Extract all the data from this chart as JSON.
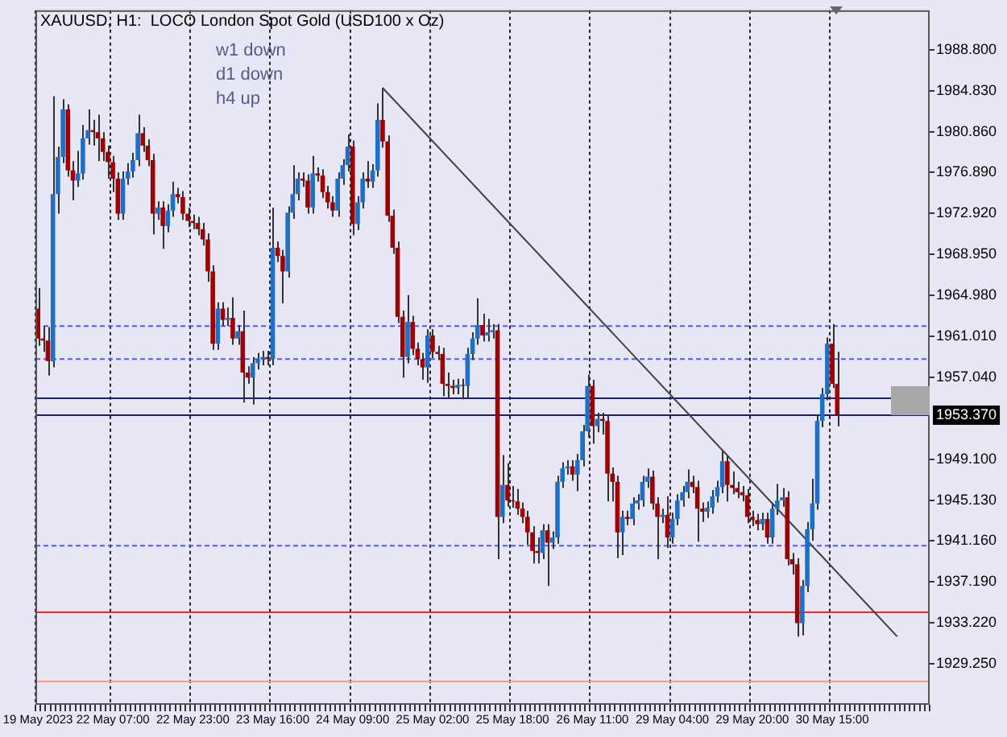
{
  "chart_data": {
    "type": "candlestick",
    "title": "XAUUSD, H1:  LOCO London Spot Gold (USD100 x Oz)",
    "annotations": [
      "w1 down",
      "d1 down",
      "h4 up"
    ],
    "categories": [
      "19 May 2023",
      null,
      null,
      null,
      null,
      null,
      null,
      null,
      null,
      null,
      null,
      null,
      null,
      null,
      null,
      "22 May 07:00",
      null,
      null,
      null,
      null,
      null,
      null,
      null,
      null,
      null,
      null,
      null,
      null,
      null,
      null,
      null,
      "22 May 23:00",
      null,
      null,
      null,
      null,
      null,
      null,
      null,
      null,
      null,
      null,
      null,
      null,
      null,
      null,
      null,
      "23 May 16:00",
      null,
      null,
      null,
      null,
      null,
      null,
      null,
      null,
      null,
      null,
      null,
      null,
      null,
      null,
      null,
      "24 May 09:00",
      null,
      null,
      null,
      null,
      null,
      null,
      null,
      null,
      null,
      null,
      null,
      null,
      null,
      null,
      null,
      "25 May 02:00",
      null,
      null,
      null,
      null,
      null,
      null,
      null,
      null,
      null,
      null,
      null,
      null,
      null,
      null,
      null,
      "25 May 18:00",
      null,
      null,
      null,
      null,
      null,
      null,
      null,
      null,
      null,
      null,
      null,
      null,
      null,
      null,
      null,
      "26 May 11:00",
      null,
      null,
      null,
      null,
      null,
      null,
      null,
      null,
      null,
      null,
      null,
      null,
      null,
      null,
      null,
      "29 May 04:00",
      null,
      null,
      null,
      null,
      null,
      null,
      null,
      null,
      null,
      null,
      null,
      null,
      null,
      null,
      null,
      "29 May 20:00",
      null,
      null,
      null,
      null,
      null,
      null,
      null,
      null,
      null,
      null,
      null,
      null,
      null,
      null,
      null,
      "30 May 15:00",
      null,
      null,
      null,
      null,
      null,
      null,
      null,
      null,
      null,
      null,
      null,
      null,
      null,
      null,
      null,
      null,
      null,
      null,
      null
    ],
    "ohlc": [
      [
        1963.7,
        1965.7,
        1960.1,
        1960.8
      ],
      [
        1960.8,
        1962.0,
        1959.5,
        1960.6
      ],
      [
        1960.6,
        1961.9,
        1957.2,
        1958.6
      ],
      [
        1958.6,
        1984.3,
        1958.0,
        1974.8
      ],
      [
        1974.8,
        1979.4,
        1972.9,
        1978.4
      ],
      [
        1978.4,
        1984.0,
        1977.8,
        1983.0
      ],
      [
        1983.0,
        1983.5,
        1976.5,
        1977.1
      ],
      [
        1977.1,
        1978.0,
        1974.2,
        1976.1
      ],
      [
        1976.1,
        1979.0,
        1975.5,
        1976.8
      ],
      [
        1976.8,
        1981.5,
        1976.2,
        1980.2
      ],
      [
        1980.2,
        1983.0,
        1979.6,
        1981.0
      ],
      [
        1981.0,
        1982.0,
        1979.5,
        1980.8
      ],
      [
        1980.8,
        1982.5,
        1978.0,
        1980.2
      ],
      [
        1980.2,
        1980.8,
        1978.0,
        1978.9
      ],
      [
        1978.9,
        1979.5,
        1976.3,
        1977.9
      ],
      [
        1977.9,
        1978.5,
        1975.0,
        1976.3
      ],
      [
        1976.3,
        1976.9,
        1972.3,
        1972.9
      ],
      [
        1972.9,
        1977.0,
        1972.3,
        1976.3
      ],
      [
        1976.3,
        1977.8,
        1975.7,
        1977.0
      ],
      [
        1977.0,
        1978.8,
        1976.4,
        1978.1
      ],
      [
        1978.1,
        1982.5,
        1977.5,
        1980.7
      ],
      [
        1980.7,
        1981.3,
        1978.9,
        1979.5
      ],
      [
        1979.5,
        1980.1,
        1977.5,
        1978.1
      ],
      [
        1978.1,
        1978.7,
        1970.9,
        1972.9
      ],
      [
        1972.9,
        1974.1,
        1972.3,
        1973.5
      ],
      [
        1973.5,
        1974.1,
        1969.5,
        1971.7
      ],
      [
        1971.7,
        1973.8,
        1971.1,
        1973.2
      ],
      [
        1973.2,
        1976.0,
        1972.6,
        1974.8
      ],
      [
        1974.8,
        1975.4,
        1973.9,
        1974.5
      ],
      [
        1974.5,
        1975.1,
        1972.3,
        1972.9
      ],
      [
        1972.9,
        1973.5,
        1971.6,
        1972.2
      ],
      [
        1972.2,
        1972.8,
        1971.4,
        1972.0
      ],
      [
        1972.0,
        1972.6,
        1970.8,
        1971.4
      ],
      [
        1971.4,
        1972.0,
        1969.8,
        1970.4
      ],
      [
        1970.4,
        1971.0,
        1966.3,
        1967.3
      ],
      [
        1967.3,
        1967.9,
        1959.7,
        1960.3
      ],
      [
        1960.3,
        1964.3,
        1959.7,
        1963.7
      ],
      [
        1963.7,
        1964.3,
        1962.0,
        1962.6
      ],
      [
        1962.6,
        1963.8,
        1962.0,
        1962.8
      ],
      [
        1962.8,
        1964.8,
        1960.2,
        1960.8
      ],
      [
        1960.8,
        1962.1,
        1960.2,
        1961.5
      ],
      [
        1961.5,
        1963.5,
        1954.6,
        1957.5
      ],
      [
        1957.5,
        1958.1,
        1956.4,
        1957.0
      ],
      [
        1957.0,
        1959.0,
        1954.4,
        1958.4
      ],
      [
        1958.4,
        1959.4,
        1957.8,
        1958.8
      ],
      [
        1958.8,
        1959.6,
        1958.2,
        1959.0
      ],
      [
        1959.0,
        1959.6,
        1958.2,
        1958.8
      ],
      [
        1958.8,
        1973.5,
        1958.2,
        1969.6
      ],
      [
        1969.6,
        1970.2,
        1968.2,
        1968.8
      ],
      [
        1968.8,
        1969.4,
        1964.2,
        1967.3
      ],
      [
        1967.3,
        1973.6,
        1966.7,
        1973.0
      ],
      [
        1973.0,
        1977.6,
        1972.4,
        1974.8
      ],
      [
        1974.8,
        1976.9,
        1974.2,
        1976.3
      ],
      [
        1976.3,
        1976.9,
        1975.5,
        1976.1
      ],
      [
        1976.1,
        1976.7,
        1972.9,
        1973.5
      ],
      [
        1973.5,
        1978.5,
        1972.9,
        1976.8
      ],
      [
        1976.8,
        1977.4,
        1976.0,
        1976.6
      ],
      [
        1976.6,
        1977.2,
        1974.4,
        1975.0
      ],
      [
        1975.0,
        1975.6,
        1973.4,
        1974.0
      ],
      [
        1974.0,
        1974.6,
        1972.6,
        1973.2
      ],
      [
        1973.2,
        1976.9,
        1972.6,
        1976.3
      ],
      [
        1976.3,
        1978.2,
        1975.7,
        1977.6
      ],
      [
        1977.6,
        1980.6,
        1977.0,
        1979.4
      ],
      [
        1979.4,
        1980.0,
        1970.8,
        1971.9
      ],
      [
        1971.9,
        1974.6,
        1971.3,
        1974.0
      ],
      [
        1974.0,
        1976.9,
        1973.4,
        1976.3
      ],
      [
        1976.3,
        1978.0,
        1975.4,
        1976.0
      ],
      [
        1976.0,
        1977.7,
        1975.4,
        1977.1
      ],
      [
        1977.1,
        1983.6,
        1976.5,
        1982.0
      ],
      [
        1982.0,
        1985.1,
        1979.3,
        1979.9
      ],
      [
        1979.9,
        1980.5,
        1972.1,
        1972.7
      ],
      [
        1972.7,
        1973.3,
        1969.0,
        1969.6
      ],
      [
        1969.6,
        1970.2,
        1962.3,
        1962.9
      ],
      [
        1962.9,
        1963.5,
        1957.0,
        1959.0
      ],
      [
        1959.0,
        1965.0,
        1958.4,
        1962.4
      ],
      [
        1962.4,
        1963.0,
        1959.2,
        1959.8
      ],
      [
        1959.8,
        1960.4,
        1958.2,
        1958.8
      ],
      [
        1958.8,
        1959.4,
        1956.8,
        1958.0
      ],
      [
        1958.0,
        1961.7,
        1956.5,
        1961.1
      ],
      [
        1961.1,
        1961.7,
        1958.9,
        1959.5
      ],
      [
        1959.5,
        1960.1,
        1958.7,
        1959.3
      ],
      [
        1959.3,
        1959.9,
        1955.2,
        1956.4
      ],
      [
        1956.4,
        1957.5,
        1955.0,
        1956.2
      ],
      [
        1956.2,
        1956.8,
        1955.4,
        1956.0
      ],
      [
        1956.0,
        1956.9,
        1955.4,
        1956.3
      ],
      [
        1956.3,
        1956.9,
        1954.9,
        1956.2
      ],
      [
        1956.2,
        1959.9,
        1955.0,
        1959.3
      ],
      [
        1959.3,
        1961.4,
        1958.7,
        1960.8
      ],
      [
        1960.8,
        1964.7,
        1960.2,
        1962.1
      ],
      [
        1962.1,
        1963.2,
        1960.5,
        1961.1
      ],
      [
        1961.1,
        1962.7,
        1960.5,
        1961.4
      ],
      [
        1961.4,
        1962.2,
        1960.8,
        1961.6
      ],
      [
        1961.6,
        1962.2,
        1939.4,
        1943.5
      ],
      [
        1943.5,
        1949.5,
        1942.9,
        1946.6
      ],
      [
        1946.6,
        1948.7,
        1944.5,
        1945.1
      ],
      [
        1945.1,
        1946.5,
        1944.4,
        1945.0
      ],
      [
        1945.0,
        1946.2,
        1943.7,
        1944.3
      ],
      [
        1944.3,
        1944.9,
        1942.9,
        1943.5
      ],
      [
        1943.5,
        1944.1,
        1940.8,
        1942.0
      ],
      [
        1942.0,
        1942.6,
        1939.0,
        1940.2
      ],
      [
        1940.2,
        1941.5,
        1939.0,
        1940.0
      ],
      [
        1940.0,
        1942.8,
        1939.4,
        1942.2
      ],
      [
        1942.2,
        1942.8,
        1936.8,
        1941.0
      ],
      [
        1941.0,
        1942.1,
        1940.4,
        1941.5
      ],
      [
        1941.5,
        1947.5,
        1940.9,
        1946.9
      ],
      [
        1946.9,
        1948.8,
        1946.3,
        1948.2
      ],
      [
        1948.2,
        1949.0,
        1947.6,
        1948.4
      ],
      [
        1948.4,
        1949.0,
        1947.0,
        1947.6
      ],
      [
        1947.6,
        1949.6,
        1946.0,
        1949.0
      ],
      [
        1949.0,
        1952.4,
        1948.4,
        1951.8
      ],
      [
        1951.8,
        1957.3,
        1951.2,
        1956.2
      ],
      [
        1956.2,
        1956.8,
        1950.6,
        1952.3
      ],
      [
        1952.3,
        1953.6,
        1951.7,
        1953.0
      ],
      [
        1953.0,
        1953.6,
        1951.5,
        1952.8
      ],
      [
        1952.8,
        1953.4,
        1945.0,
        1947.7
      ],
      [
        1947.7,
        1948.3,
        1945.0,
        1946.9
      ],
      [
        1946.9,
        1947.5,
        1939.5,
        1942.0
      ],
      [
        1942.0,
        1944.1,
        1939.8,
        1943.5
      ],
      [
        1943.5,
        1944.1,
        1942.7,
        1943.3
      ],
      [
        1943.3,
        1945.4,
        1942.7,
        1944.8
      ],
      [
        1944.8,
        1945.7,
        1944.2,
        1945.1
      ],
      [
        1945.1,
        1947.5,
        1944.5,
        1946.9
      ],
      [
        1946.9,
        1948.2,
        1946.3,
        1947.4
      ],
      [
        1947.4,
        1948.0,
        1944.2,
        1944.8
      ],
      [
        1944.8,
        1945.4,
        1939.4,
        1943.5
      ],
      [
        1943.5,
        1944.3,
        1942.9,
        1943.7
      ],
      [
        1943.7,
        1945.5,
        1940.5,
        1941.5
      ],
      [
        1941.5,
        1943.9,
        1940.9,
        1943.3
      ],
      [
        1943.3,
        1945.7,
        1942.7,
        1945.1
      ],
      [
        1945.1,
        1946.5,
        1944.5,
        1945.9
      ],
      [
        1945.9,
        1948.1,
        1945.3,
        1946.9
      ],
      [
        1946.9,
        1947.5,
        1945.8,
        1946.4
      ],
      [
        1946.4,
        1947.0,
        1941.1,
        1944.3
      ],
      [
        1944.3,
        1944.9,
        1943.0,
        1944.0
      ],
      [
        1944.0,
        1945.0,
        1943.4,
        1944.4
      ],
      [
        1944.4,
        1946.1,
        1943.8,
        1945.5
      ],
      [
        1945.5,
        1947.0,
        1944.9,
        1946.4
      ],
      [
        1946.4,
        1949.9,
        1945.8,
        1948.9
      ],
      [
        1948.9,
        1949.5,
        1945.0,
        1946.6
      ],
      [
        1946.6,
        1947.9,
        1945.7,
        1946.3
      ],
      [
        1946.3,
        1946.9,
        1945.3,
        1945.9
      ],
      [
        1945.9,
        1946.5,
        1945.0,
        1945.6
      ],
      [
        1945.6,
        1946.2,
        1942.9,
        1943.5
      ],
      [
        1943.5,
        1944.1,
        1942.6,
        1943.2
      ],
      [
        1943.2,
        1943.8,
        1942.2,
        1942.8
      ],
      [
        1942.8,
        1943.9,
        1942.2,
        1943.3
      ],
      [
        1943.3,
        1943.9,
        1940.9,
        1941.5
      ],
      [
        1941.5,
        1944.9,
        1940.9,
        1944.3
      ],
      [
        1944.3,
        1946.7,
        1943.7,
        1945.1
      ],
      [
        1945.1,
        1946.3,
        1944.5,
        1945.4
      ],
      [
        1945.4,
        1946.0,
        1938.8,
        1939.4
      ],
      [
        1939.4,
        1940.0,
        1937.9,
        1938.9
      ],
      [
        1938.9,
        1939.5,
        1931.9,
        1933.2
      ],
      [
        1933.2,
        1937.4,
        1932.0,
        1936.8
      ],
      [
        1936.8,
        1943.0,
        1936.2,
        1942.3
      ],
      [
        1942.3,
        1947.2,
        1941.2,
        1944.8
      ],
      [
        1944.8,
        1953.4,
        1944.2,
        1952.8
      ],
      [
        1952.8,
        1956.0,
        1952.2,
        1955.4
      ],
      [
        1955.4,
        1960.9,
        1954.8,
        1960.3
      ],
      [
        1960.3,
        1962.2,
        1956.0,
        1956.4
      ],
      [
        1956.4,
        1959.5,
        1952.3,
        1953.37
      ],
      null,
      null,
      null,
      null,
      null,
      null,
      null,
      null,
      null,
      null,
      null,
      null,
      null,
      null,
      null,
      null,
      null,
      null
    ],
    "colors": [
      "#a00000",
      "#a00000",
      "#a00000",
      "#1f6fc5",
      "#1f6fc5",
      "#1f6fc5",
      "#a00000",
      "#a00000",
      "#1f6fc5",
      "#1f6fc5",
      "#1f6fc5",
      "#a00000",
      "#a00000",
      "#a00000",
      "#a00000",
      "#a00000",
      "#a00000",
      "#1f6fc5",
      "#1f6fc5",
      "#1f6fc5",
      "#1f6fc5",
      "#a00000",
      "#a00000",
      "#a00000",
      "#1f6fc5",
      "#a00000",
      "#1f6fc5",
      "#1f6fc5",
      "#a00000",
      "#a00000",
      "#a00000",
      "#a00000",
      "#a00000",
      "#a00000",
      "#a00000",
      "#a00000",
      "#1f6fc5",
      "#a00000",
      "#1f6fc5",
      "#a00000",
      "#1f6fc5",
      "#a00000",
      "#a00000",
      "#1f6fc5",
      "#1f6fc5",
      "#1f6fc5",
      "#a00000",
      "#1f6fc5",
      "#a00000",
      "#a00000",
      "#1f6fc5",
      "#1f6fc5",
      "#1f6fc5",
      "#a00000",
      "#a00000",
      "#1f6fc5",
      "#a00000",
      "#a00000",
      "#a00000",
      "#a00000",
      "#1f6fc5",
      "#1f6fc5",
      "#1f6fc5",
      "#a00000",
      "#1f6fc5",
      "#1f6fc5",
      "#a00000",
      "#1f6fc5",
      "#1f6fc5",
      "#a00000",
      "#a00000",
      "#a00000",
      "#a00000",
      "#a00000",
      "#1f6fc5",
      "#a00000",
      "#a00000",
      "#a00000",
      "#1f6fc5",
      "#a00000",
      "#a00000",
      "#a00000",
      "#a00000",
      "#a00000",
      "#1f6fc5",
      "#a00000",
      "#1f6fc5",
      "#1f6fc5",
      "#1f6fc5",
      "#a00000",
      "#1f6fc5",
      "#1f6fc5",
      "#a00000",
      "#1f6fc5",
      "#a00000",
      "#a00000",
      "#a00000",
      "#a00000",
      "#a00000",
      "#a00000",
      "#a00000",
      "#1f6fc5",
      "#a00000",
      "#1f6fc5",
      "#1f6fc5",
      "#1f6fc5",
      "#1f6fc5",
      "#a00000",
      "#1f6fc5",
      "#1f6fc5",
      "#1f6fc5",
      "#a00000",
      "#1f6fc5",
      "#a00000",
      "#a00000",
      "#a00000",
      "#a00000",
      "#1f6fc5",
      "#a00000",
      "#1f6fc5",
      "#1f6fc5",
      "#1f6fc5",
      "#1f6fc5",
      "#a00000",
      "#a00000",
      "#1f6fc5",
      "#a00000",
      "#1f6fc5",
      "#1f6fc5",
      "#1f6fc5",
      "#1f6fc5",
      "#a00000",
      "#a00000",
      "#a00000",
      "#1f6fc5",
      "#1f6fc5",
      "#1f6fc5",
      "#1f6fc5",
      "#a00000",
      "#a00000",
      "#a00000",
      "#a00000",
      "#a00000",
      "#a00000",
      "#a00000",
      "#1f6fc5",
      "#a00000",
      "#1f6fc5",
      "#1f6fc5",
      "#1f6fc5",
      "#a00000",
      "#a00000",
      "#a00000",
      "#1f6fc5",
      "#1f6fc5",
      "#1f6fc5",
      "#1f6fc5",
      "#1f6fc5",
      "#1f6fc5",
      "#a00000",
      "#a00000",
      null,
      null,
      null,
      null,
      null,
      null,
      null,
      null,
      null,
      null,
      null,
      null,
      null,
      null,
      null,
      null,
      null,
      null
    ],
    "series": [
      {
        "type": "line",
        "color": "#404040",
        "values": [
          null,
          null,
          null,
          null,
          null,
          null,
          null,
          null,
          null,
          null,
          null,
          null,
          null,
          null,
          null,
          null,
          null,
          null,
          null,
          null,
          null,
          null,
          null,
          null,
          null,
          null,
          null,
          null,
          null,
          null,
          null,
          null,
          null,
          null,
          null,
          null,
          null,
          null,
          null,
          null,
          null,
          null,
          null,
          null,
          null,
          null,
          null,
          null,
          null,
          null,
          null,
          null,
          null,
          null,
          null,
          null,
          null,
          null,
          null,
          null,
          null,
          null,
          null,
          null,
          null,
          null,
          null,
          null,
          null,
          1985.1,
          null,
          null,
          null,
          null,
          null,
          null,
          null,
          null,
          null,
          null,
          null,
          null,
          null,
          null,
          null,
          null,
          null,
          null,
          null,
          null,
          null,
          null,
          null,
          null,
          null,
          null,
          null,
          null,
          null,
          null,
          null,
          null,
          null,
          null,
          null,
          null,
          null,
          null,
          null,
          null,
          null,
          null,
          null,
          null,
          null,
          null,
          null,
          null,
          null,
          null,
          null,
          null,
          null,
          null,
          null,
          null,
          null,
          null,
          null,
          null,
          null,
          null,
          null,
          null,
          null,
          null,
          null,
          null,
          null,
          null,
          null,
          null,
          null,
          null,
          null,
          null,
          null,
          null,
          null,
          null,
          null,
          null,
          null,
          null,
          null,
          null,
          null,
          null,
          null,
          null,
          null,
          null,
          null,
          null,
          null,
          null,
          null,
          null,
          null,
          null,
          null,
          null,
          1931.9,
          null,
          null,
          null,
          null,
          null,
          null
        ]
      }
    ],
    "ylim": [
      1925.28,
      1992.62
    ],
    "yticks": [
      {
        "value": 1988.8,
        "label": "1988.800"
      },
      {
        "value": 1984.83,
        "label": "1984.830"
      },
      {
        "value": 1980.86,
        "label": "1980.860"
      },
      {
        "value": 1976.89,
        "label": "1976.890"
      },
      {
        "value": 1972.92,
        "label": "1972.920"
      },
      {
        "value": 1968.95,
        "label": "1968.950"
      },
      {
        "value": 1964.98,
        "label": "1964.980"
      },
      {
        "value": 1961.01,
        "label": "1961.010"
      },
      {
        "value": 1957.04,
        "label": "1957.040"
      },
      {
        "value": 1949.1,
        "label": "1949.100"
      },
      {
        "value": 1945.13,
        "label": "1945.130"
      },
      {
        "value": 1941.16,
        "label": "1941.160"
      },
      {
        "value": 1937.19,
        "label": "1937.190"
      },
      {
        "value": 1933.22,
        "label": "1933.220"
      },
      {
        "value": 1929.25,
        "label": "1929.250"
      }
    ],
    "ref_lines": [
      {
        "axis": "y",
        "value": 1962.0,
        "color": "#5555ff",
        "line_style": "dashed"
      },
      {
        "axis": "y",
        "value": 1958.8,
        "color": "#5555ff",
        "line_style": "dashed"
      },
      {
        "axis": "y",
        "value": 1955.0,
        "color": "#1a1a80",
        "line_style": "solid"
      },
      {
        "axis": "y",
        "value": 1953.37,
        "label": "1953.370",
        "color": "#1a1a80",
        "line_style": "solid"
      },
      {
        "axis": "y",
        "value": 1940.7,
        "color": "#5555ff",
        "line_style": "dashed"
      },
      {
        "axis": "y",
        "value": 1934.26,
        "color": "#ff2020",
        "line_style": "solid"
      },
      {
        "axis": "y",
        "value": 1927.55,
        "color": "#f4a080",
        "line_style": "solid"
      }
    ],
    "grid": "x",
    "legend": false
  }
}
